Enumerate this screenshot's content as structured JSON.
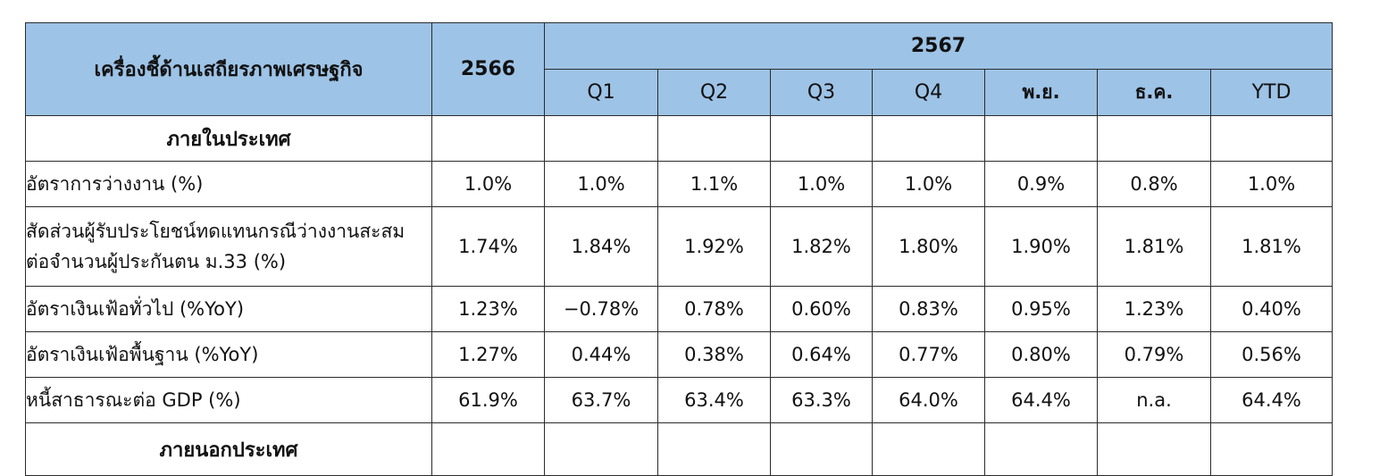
{
  "header": {
    "indicator": "เครื่องชี้ด้านเสถียรภาพเศรษฐกิจ",
    "year_prev": "2566",
    "year_cur": "2567",
    "periods": [
      "Q1",
      "Q2",
      "Q3",
      "Q4",
      "พ.ย.",
      "ธ.ค.",
      "YTD"
    ]
  },
  "sections": {
    "domestic": "ภายในประเทศ",
    "external": "ภายนอกประเทศ"
  },
  "rows": [
    {
      "label": "อัตราการว่างงาน (%)",
      "values": [
        "1.0%",
        "1.0%",
        "1.1%",
        "1.0%",
        "1.0%",
        "0.9%",
        "0.8%",
        "1.0%"
      ]
    },
    {
      "label": "สัดส่วนผู้รับประโยชน์ทดแทนกรณีว่างงานสะสม",
      "label2": "ต่อจำนวนผู้ประกันตน ม.33 (%)",
      "values": [
        "1.74%",
        "1.84%",
        "1.92%",
        "1.82%",
        "1.80%",
        "1.90%",
        "1.81%",
        "1.81%"
      ]
    },
    {
      "label": "อัตราเงินเฟ้อทั่วไป (%YoY)",
      "values": [
        "1.23%",
        "−0.78%",
        "0.78%",
        "0.60%",
        "0.83%",
        "0.95%",
        "1.23%",
        "0.40%"
      ]
    },
    {
      "label": "อัตราเงินเฟ้อพื้นฐาน (%YoY)",
      "values": [
        "1.27%",
        "0.44%",
        "0.38%",
        "0.64%",
        "0.77%",
        "0.80%",
        "0.79%",
        "0.56%"
      ]
    },
    {
      "label": "หนี้สาธารณะต่อ GDP (%)",
      "values": [
        "61.9%",
        "63.7%",
        "63.4%",
        "63.3%",
        "64.0%",
        "64.4%",
        "n.a.",
        "64.4%"
      ]
    }
  ]
}
